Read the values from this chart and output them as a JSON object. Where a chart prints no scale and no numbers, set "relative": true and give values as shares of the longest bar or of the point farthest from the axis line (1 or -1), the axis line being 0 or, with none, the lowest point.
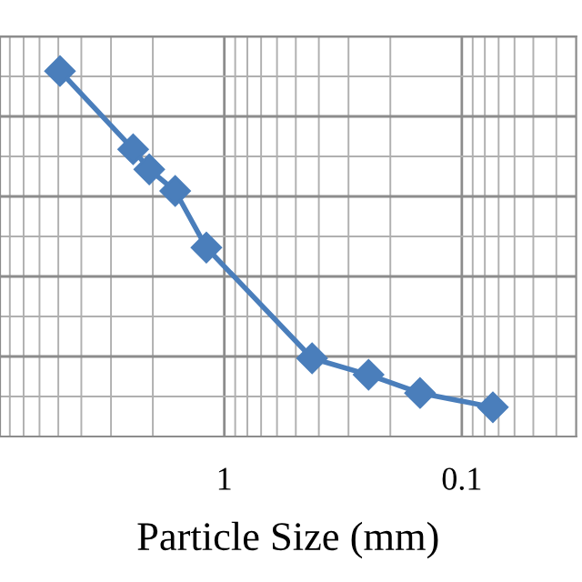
{
  "chart_data": {
    "type": "line",
    "xlabel": "Particle Size (mm)",
    "log": "x",
    "relative": true,
    "x": [
      4.92,
      2.42,
      2.07,
      1.61,
      1.19,
      0.427,
      0.247,
      0.15,
      0.074
    ],
    "xlim": [
      8.8,
      0.033
    ],
    "xticks": [
      1,
      0.1
    ],
    "series": [
      {
        "color": "#4a7ebb",
        "values": [
          1,
          0.786,
          0.731,
          0.672,
          0.517,
          0.214,
          0.169,
          0.119,
          0.08
        ]
      }
    ],
    "marker": "diamond",
    "line_style": "solid",
    "grid": true
  }
}
